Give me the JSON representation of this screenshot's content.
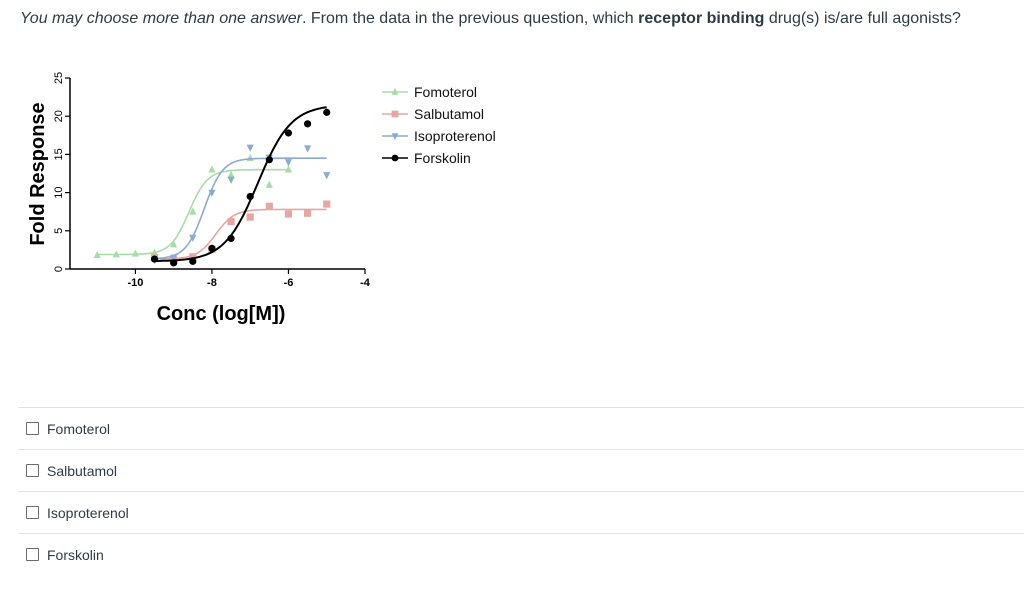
{
  "question": {
    "prefix_italic": "You may choose more than one answer",
    "text_1": ". From the data in the previous question, which ",
    "bold": "receptor binding",
    "text_2": " drug(s) is/are full agonists?"
  },
  "chart_data": {
    "type": "scatter",
    "xlabel": "Conc (log[M])",
    "ylabel": "Fold Response",
    "xlim": [
      -11.5,
      -4
    ],
    "ylim": [
      0,
      25
    ],
    "xticks": [
      -10,
      -8,
      -6,
      -4
    ],
    "xtick_labels": [
      "-10",
      "-8",
      "-6",
      "-4"
    ],
    "yticks": [
      0,
      5,
      10,
      15,
      20,
      25
    ],
    "ytick_labels": [
      "0",
      "5",
      "10",
      "15",
      "20",
      "25"
    ],
    "legend_position": "top-right",
    "series": [
      {
        "name": "Fomoterol",
        "color": "#a8dca6",
        "marker": "triangle-up",
        "x": [
          -11,
          -10.5,
          -10,
          -9.5,
          -9,
          -8.5,
          -8,
          -7.5,
          -7,
          -6.5,
          -6
        ],
        "y": [
          1.8,
          1.9,
          2.0,
          2.1,
          3.2,
          7.5,
          13.0,
          12.3,
          14.5,
          11.0,
          13.0
        ],
        "fit": {
          "bottom": 1.9,
          "top": 13.0,
          "logec50": -8.6,
          "hill": 1.8
        }
      },
      {
        "name": "Salbutamol",
        "color": "#e5a7a2",
        "marker": "square",
        "x": [
          -9.5,
          -9,
          -8.5,
          -8,
          -7.5,
          -7,
          -6.5,
          -6,
          -5.5,
          -5
        ],
        "y": [
          1.5,
          1.2,
          1.6,
          2.6,
          6.2,
          6.8,
          8.2,
          7.2,
          7.3,
          8.5
        ],
        "fit": {
          "bottom": 1.3,
          "top": 7.8,
          "logec50": -7.9,
          "hill": 1.8
        }
      },
      {
        "name": "Isoproterenol",
        "color": "#8baad2",
        "marker": "triangle-down",
        "x": [
          -9.5,
          -9,
          -8.5,
          -8,
          -7.5,
          -7,
          -6.5,
          -6,
          -5.5,
          -5
        ],
        "y": [
          1.2,
          1.5,
          4.1,
          10.0,
          11.7,
          15.9,
          14.6,
          14.0,
          15.8,
          12.3
        ],
        "fit": {
          "bottom": 1.3,
          "top": 14.5,
          "logec50": -8.2,
          "hill": 1.8
        }
      },
      {
        "name": "Forskolin",
        "color": "#000000",
        "marker": "circle",
        "x": [
          -9.5,
          -9,
          -8.5,
          -8,
          -7.5,
          -7,
          -6.5,
          -6,
          -5.5,
          -5
        ],
        "y": [
          1.3,
          0.8,
          1.0,
          2.7,
          4.0,
          9.5,
          14.3,
          17.8,
          19.0,
          20.5
        ],
        "fit": {
          "bottom": 1.0,
          "top": 21.5,
          "logec50": -6.8,
          "hill": 1.0
        }
      }
    ]
  },
  "answers": [
    {
      "label": "Fomoterol",
      "checked": false
    },
    {
      "label": "Salbutamol",
      "checked": false
    },
    {
      "label": "Isoproterenol",
      "checked": false
    },
    {
      "label": "Forskolin",
      "checked": false
    }
  ]
}
